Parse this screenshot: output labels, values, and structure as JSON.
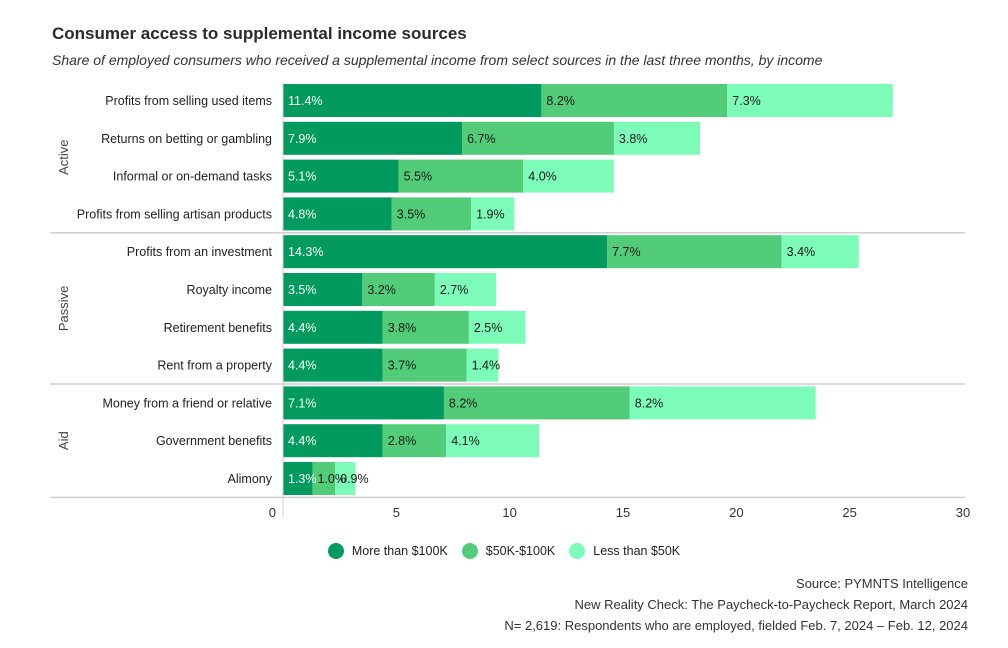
{
  "header": {
    "title": "Consumer access to supplemental income sources",
    "subtitle": "Share of employed consumers who received a supplemental income from select sources in the last three months, by income"
  },
  "legend": [
    {
      "label": "More than $100K",
      "color": "#029a5e"
    },
    {
      "label": "$50K-$100K",
      "color": "#52cc79"
    },
    {
      "label": "Less than $50K",
      "color": "#7cfcb8"
    }
  ],
  "source": {
    "line1": "Source: PYMNTS Intelligence",
    "line2": "New Reality Check: The Paycheck-to-Paycheck Report, March 2024",
    "line3": "N= 2,619: Respondents who are employed, fielded Feb. 7, 2024 – Feb. 12, 2024"
  },
  "chart_data": {
    "type": "bar",
    "orientation": "horizontal",
    "stacked": true,
    "title": "Consumer access to supplemental income sources",
    "subtitle": "Share of employed consumers who received a supplemental income from select sources in the last three months, by income",
    "xlabel": "",
    "ylabel": "",
    "xlim": [
      0,
      30
    ],
    "xticks": [
      0,
      5,
      10,
      15,
      20,
      25,
      30
    ],
    "legend_position": "bottom-center",
    "grid": false,
    "groups": [
      {
        "name": "Active",
        "categories": [
          "Profits from selling used items",
          "Returns on betting or gambling",
          "Informal or on-demand tasks",
          "Profits from selling artisan products"
        ]
      },
      {
        "name": "Passive",
        "categories": [
          "Profits from an investment",
          "Royalty income",
          "Retirement benefits",
          "Rent from a property"
        ]
      },
      {
        "name": "Aid",
        "categories": [
          "Money from a friend or relative",
          "Government benefits",
          "Alimony"
        ]
      }
    ],
    "categories": [
      "Profits from selling used items",
      "Returns on betting or gambling",
      "Informal or on-demand tasks",
      "Profits from selling artisan products",
      "Profits from an investment",
      "Royalty income",
      "Retirement benefits",
      "Rent from a property",
      "Money from a friend or relative",
      "Government benefits",
      "Alimony"
    ],
    "series": [
      {
        "name": "More than $100K",
        "color": "#029a5e",
        "label_color": "#ffffff",
        "values": [
          11.4,
          7.9,
          5.1,
          4.8,
          14.3,
          3.5,
          4.4,
          4.4,
          7.1,
          4.4,
          1.3
        ]
      },
      {
        "name": "$50K-$100K",
        "color": "#52cc79",
        "label_color": "#1a1a1a",
        "values": [
          8.2,
          6.7,
          5.5,
          3.5,
          7.7,
          3.2,
          3.8,
          3.7,
          8.2,
          2.8,
          1.0
        ]
      },
      {
        "name": "Less than $50K",
        "color": "#7cfcb8",
        "label_color": "#1a1a1a",
        "values": [
          7.3,
          3.8,
          4.0,
          1.9,
          3.4,
          2.7,
          2.5,
          1.4,
          8.2,
          4.1,
          0.9
        ]
      }
    ],
    "value_suffix": "%"
  }
}
